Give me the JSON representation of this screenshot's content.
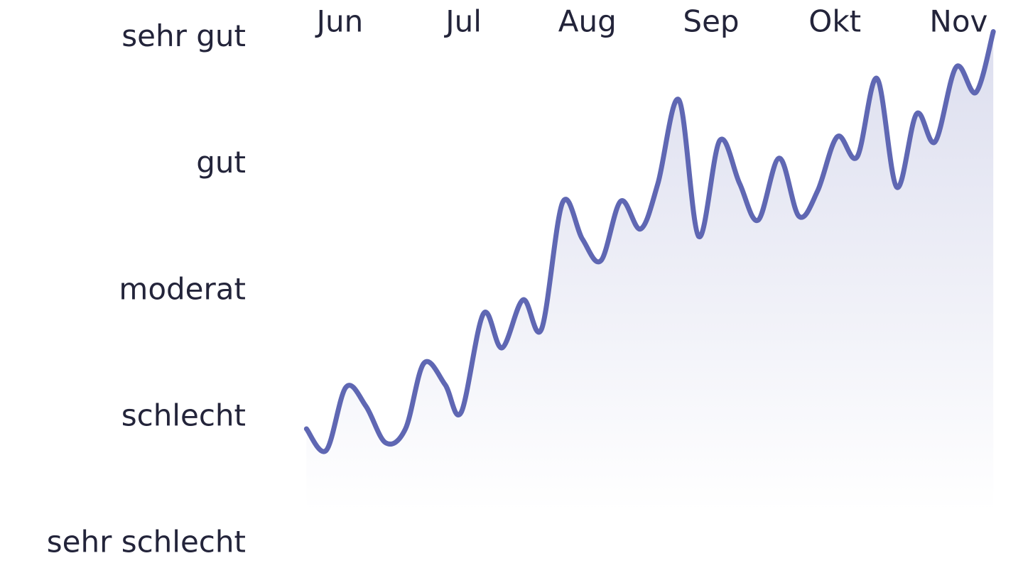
{
  "chart_data": {
    "type": "line",
    "area": true,
    "color": "#5f67b3",
    "x": [
      -0.27,
      -0.11,
      0.05,
      0.21,
      0.37,
      0.53,
      0.68,
      0.85,
      0.98,
      1.16,
      1.31,
      1.48,
      1.63,
      1.8,
      1.96,
      2.11,
      2.27,
      2.43,
      2.57,
      2.74,
      2.9,
      3.07,
      3.23,
      3.38,
      3.55,
      3.71,
      3.86,
      4.02,
      4.18,
      4.34,
      4.5,
      4.66,
      4.81,
      4.98,
      5.14,
      5.28
    ],
    "values": [
      0.91,
      0.74,
      1.24,
      1.09,
      0.8,
      0.91,
      1.43,
      1.26,
      1.04,
      1.82,
      1.55,
      1.93,
      1.7,
      2.7,
      2.41,
      2.24,
      2.71,
      2.49,
      2.85,
      3.51,
      2.43,
      3.19,
      2.85,
      2.56,
      3.05,
      2.59,
      2.79,
      3.22,
      3.06,
      3.68,
      2.82,
      3.4,
      3.18,
      3.77,
      3.57,
      4.05
    ],
    "xlim": [
      -0.45,
      5.52
    ],
    "xticks": [
      {
        "value": 0,
        "label": "Jun"
      },
      {
        "value": 1,
        "label": "Jul"
      },
      {
        "value": 2,
        "label": "Aug"
      },
      {
        "value": 3,
        "label": "Sep"
      },
      {
        "value": 4,
        "label": "Okt"
      },
      {
        "value": 5,
        "label": "Nov"
      }
    ],
    "ylim": [
      -0.19,
      4.3
    ],
    "yticks": [
      {
        "value": 4,
        "label": "sehr gut"
      },
      {
        "value": 3,
        "label": "gut"
      },
      {
        "value": 2,
        "label": "moderat"
      },
      {
        "value": 1,
        "label": "schlecht"
      },
      {
        "value": 0,
        "label": "sehr schlecht"
      }
    ]
  }
}
